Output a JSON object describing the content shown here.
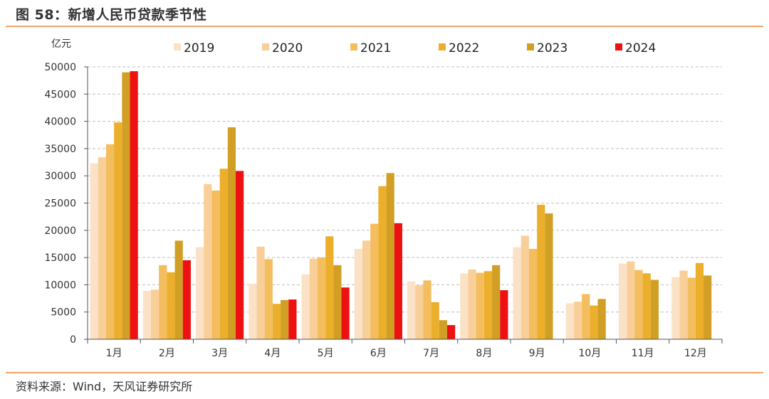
{
  "figure": {
    "title": "图 58：新增人民币贷款季节性",
    "source": "资料来源：Wind，天风证券研究所"
  },
  "chart_data": {
    "type": "bar",
    "unit_label": "亿元",
    "categories": [
      "1月",
      "2月",
      "3月",
      "4月",
      "5月",
      "6月",
      "7月",
      "8月",
      "9月",
      "10月",
      "11月",
      "12月"
    ],
    "ylim": [
      0,
      50000
    ],
    "yticks": [
      0,
      5000,
      10000,
      15000,
      20000,
      25000,
      30000,
      35000,
      40000,
      45000,
      50000
    ],
    "grid": true,
    "legend_position": "top",
    "series": [
      {
        "name": "2019",
        "color": "#fbe2c6",
        "values": [
          32300,
          8900,
          16900,
          10200,
          11900,
          16600,
          10600,
          12100,
          16900,
          6600,
          13900,
          11400
        ]
      },
      {
        "name": "2020",
        "color": "#f8cf98",
        "values": [
          33400,
          9100,
          28500,
          17000,
          14800,
          18100,
          9900,
          12800,
          19000,
          6900,
          14300,
          12600
        ]
      },
      {
        "name": "2021",
        "color": "#f4bd5d",
        "values": [
          35800,
          13600,
          27300,
          14700,
          15000,
          21200,
          10800,
          12200,
          16600,
          8300,
          12700,
          11300
        ]
      },
      {
        "name": "2022",
        "color": "#ebaf2b",
        "values": [
          39800,
          12300,
          31300,
          6500,
          18900,
          28100,
          6800,
          12500,
          24700,
          6200,
          12100,
          14000
        ]
      },
      {
        "name": "2023",
        "color": "#d29f25",
        "values": [
          49000,
          18100,
          38900,
          7200,
          13600,
          30500,
          3500,
          13600,
          23100,
          7400,
          10900,
          11700
        ]
      },
      {
        "name": "2024",
        "color": "#ee1111",
        "values": [
          49200,
          14500,
          30900,
          7300,
          9500,
          21300,
          2600,
          9000,
          null,
          null,
          null,
          null
        ]
      }
    ]
  }
}
